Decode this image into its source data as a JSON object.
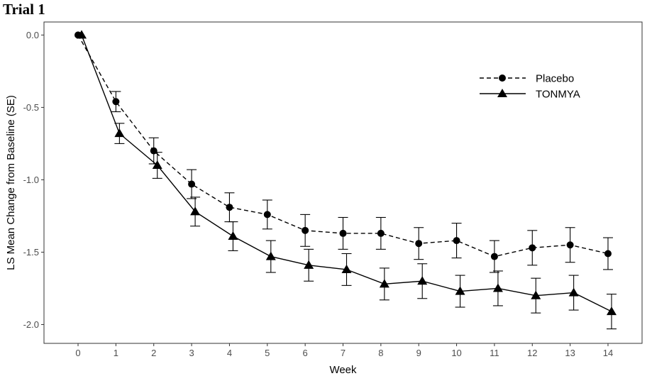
{
  "chart_data": {
    "type": "line",
    "title": "Trial 1",
    "xlabel": "Week",
    "ylabel": "LS Mean Change from Baseline (SE)",
    "xlim": [
      -0.9,
      14.9
    ],
    "ylim": [
      -2.13,
      0.09
    ],
    "x_ticks": [
      0,
      1,
      2,
      3,
      4,
      5,
      6,
      7,
      8,
      9,
      10,
      11,
      12,
      13,
      14
    ],
    "y_ticks": [
      0.0,
      -0.5,
      -1.0,
      -1.5,
      -2.0
    ],
    "y_tick_labels": [
      "0.0",
      "-0.5",
      "-1.0",
      "-1.5",
      "-2.0"
    ],
    "grid": false,
    "legend_position": "top-right",
    "series": [
      {
        "name": "Placebo",
        "line_style": "dashed",
        "marker": "circle",
        "color": "#000000",
        "x": [
          0,
          1,
          2,
          3,
          4,
          5,
          6,
          7,
          8,
          9,
          10,
          11,
          12,
          13,
          14
        ],
        "y": [
          0.0,
          -0.46,
          -0.8,
          -1.03,
          -1.19,
          -1.24,
          -1.35,
          -1.37,
          -1.37,
          -1.44,
          -1.42,
          -1.53,
          -1.47,
          -1.45,
          -1.51
        ],
        "se": [
          0.0,
          0.07,
          0.09,
          0.1,
          0.1,
          0.1,
          0.11,
          0.11,
          0.11,
          0.11,
          0.12,
          0.11,
          0.12,
          0.12,
          0.11
        ]
      },
      {
        "name": "TONMYA",
        "line_style": "solid",
        "marker": "triangle",
        "color": "#000000",
        "x": [
          0,
          1,
          2,
          3,
          4,
          5,
          6,
          7,
          8,
          9,
          10,
          11,
          12,
          13,
          14
        ],
        "y": [
          0.0,
          -0.68,
          -0.9,
          -1.22,
          -1.39,
          -1.53,
          -1.59,
          -1.62,
          -1.72,
          -1.7,
          -1.77,
          -1.75,
          -1.8,
          -1.78,
          -1.91
        ],
        "se": [
          0.0,
          0.07,
          0.09,
          0.1,
          0.1,
          0.11,
          0.11,
          0.11,
          0.11,
          0.12,
          0.11,
          0.12,
          0.12,
          0.12,
          0.12
        ]
      }
    ]
  }
}
